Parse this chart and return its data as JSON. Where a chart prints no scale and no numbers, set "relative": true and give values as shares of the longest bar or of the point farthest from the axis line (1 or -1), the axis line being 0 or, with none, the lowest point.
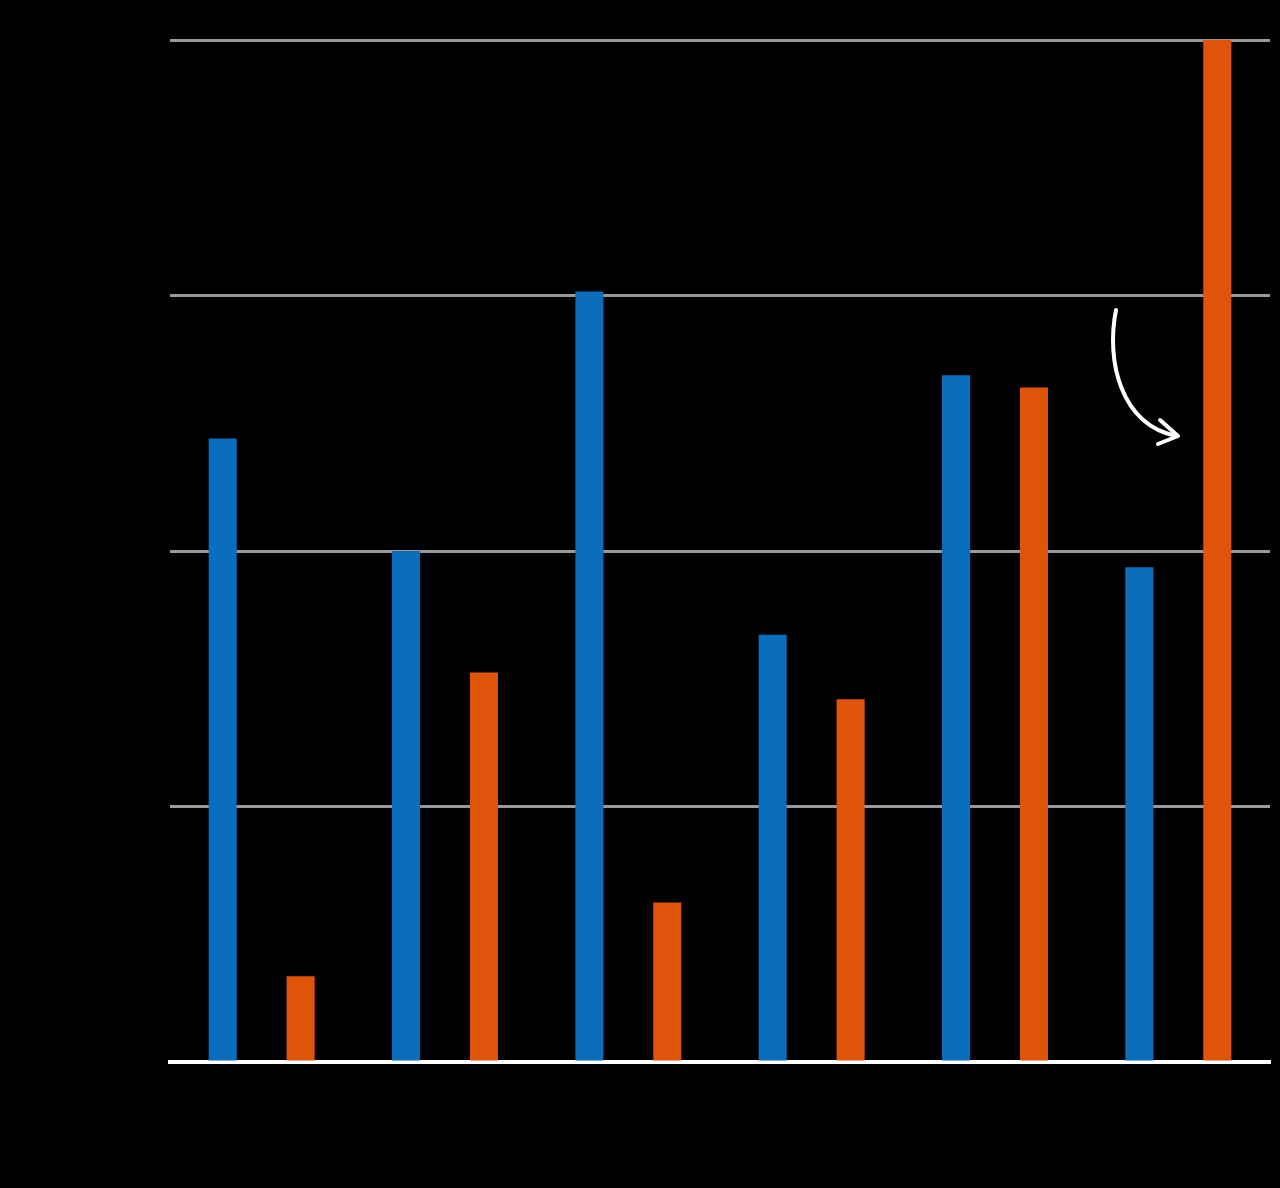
{
  "chart_data": {
    "type": "bar",
    "relative": true,
    "grid": "y",
    "categories": [
      null,
      null,
      null,
      null,
      null,
      null
    ],
    "series": [
      {
        "color": "#0a6ebd",
        "values": [
          0.61,
          0.5,
          0.754,
          0.418,
          0.672,
          0.484
        ]
      },
      {
        "color": "#e0540a",
        "values": [
          0.084,
          0.381,
          0.156,
          0.355,
          0.66,
          1
        ]
      }
    ]
  }
}
